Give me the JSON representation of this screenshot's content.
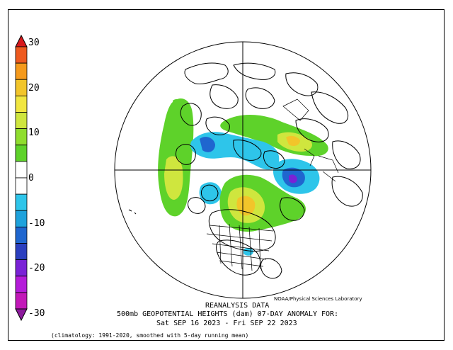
{
  "colorbar": {
    "ticks": [
      "30",
      "20",
      "10",
      "0",
      "-10",
      "-20",
      "-30"
    ],
    "tick_values": [
      30,
      20,
      10,
      0,
      -10,
      -20,
      -30
    ],
    "range": [
      -30,
      30
    ],
    "colors_top_to_bottom": [
      "#d7191c",
      "#ee5a1f",
      "#f59a1c",
      "#f2c52a",
      "#f1e640",
      "#cfe63e",
      "#8fdd2e",
      "#5ed22a",
      "#ffffff",
      "#ffffff",
      "#2ec5ea",
      "#1ea2dc",
      "#1f66cf",
      "#2b3fbf",
      "#7a22d6",
      "#b41cd9",
      "#c218b8",
      "#8c1a9c"
    ]
  },
  "header": {
    "credit": "NOAA/Physical Sciences Laboratory",
    "title_line_1": "REANALYSIS DATA",
    "title_line_2": "500mb GEOPOTENTIAL HEIGHTS (dam)  07-DAY ANOMALY FOR:",
    "title_line_3": "Sat SEP 16 2023 - Fri SEP 22 2023"
  },
  "footnote": "(climatology: 1991-2020, smoothed with 5-day running mean)"
}
